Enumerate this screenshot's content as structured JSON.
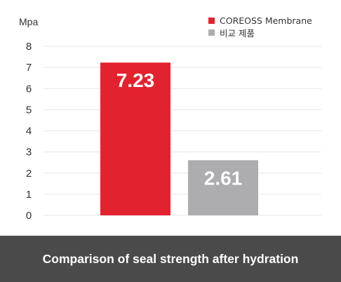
{
  "chart_data": {
    "type": "bar",
    "categories": [
      "COREOSS Membrane",
      "비교 제품"
    ],
    "values": [
      7.23,
      2.61
    ],
    "value_labels": [
      "7.23",
      "2.61"
    ],
    "colors": [
      "#e3222f",
      "#adadb0"
    ],
    "ylabel": "Mpa",
    "ylim": [
      0,
      8
    ],
    "yticks": [
      "0",
      "1",
      "2",
      "3",
      "4",
      "5",
      "6",
      "7",
      "8"
    ],
    "grid": true,
    "legend_placement": "top-right",
    "legend": [
      {
        "label": "COREOSS Membrane",
        "color": "#e3222f"
      },
      {
        "label": "비교 제품",
        "color": "#adadb0"
      }
    ]
  },
  "footer": {
    "caption": "Comparison of seal strength after hydration"
  }
}
